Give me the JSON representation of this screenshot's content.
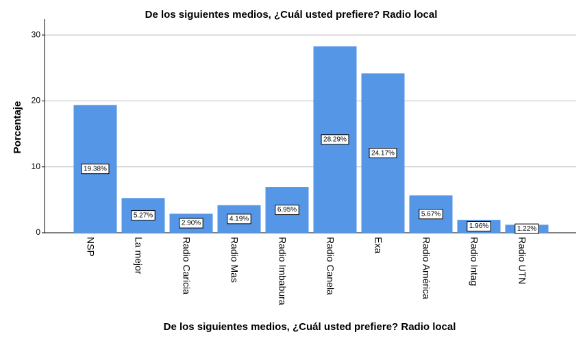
{
  "chart_data": {
    "type": "bar",
    "title": "De los siguientes medios, ¿Cuál usted prefiere? Radio local",
    "x_label": "De los siguientes medios, ¿Cuál usted prefiere? Radio local",
    "y_label": "Porcentaje",
    "categories": [
      "NSP",
      "La mejor",
      "Radio Caricia",
      "Radio Mas",
      "Radio Imbabura",
      "Radio Canela",
      "Exa",
      "Radio América",
      "Radio Intag",
      "Radio UTN"
    ],
    "values": [
      19.38,
      5.27,
      2.9,
      4.19,
      6.95,
      28.29,
      24.17,
      5.67,
      1.96,
      1.22
    ],
    "value_labels": [
      "19.38%",
      "5.27%",
      "2.90%",
      "4.19%",
      "6.95%",
      "28.29%",
      "24.17%",
      "5.67%",
      "1.96%",
      "1.22%"
    ],
    "color": "#5596e6",
    "ylim": [
      0,
      32.4
    ],
    "yticks": [
      0,
      10,
      20,
      30
    ],
    "grid": true
  }
}
